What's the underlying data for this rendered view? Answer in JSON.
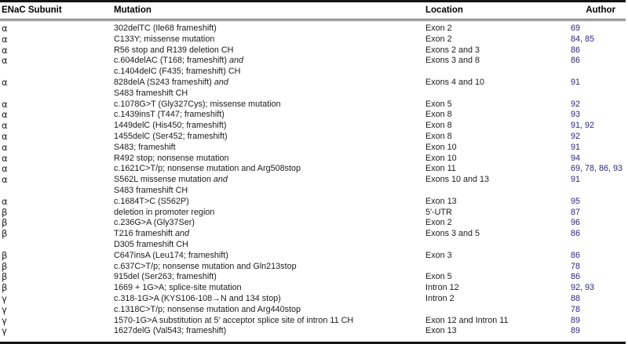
{
  "colors": {
    "author_ref": "#28287d",
    "rule": "#141414",
    "text": "#1b1b1b"
  },
  "table": {
    "columns": [
      "ENaC Subunit",
      "Mutation",
      "Location",
      "Author"
    ],
    "rows": [
      {
        "subunit": "α",
        "mutation_lines": [
          "302delTC (Ile68 frameshift)"
        ],
        "location": "Exon 2",
        "author": "69"
      },
      {
        "subunit": "α",
        "mutation_lines": [
          "C133Y; missense mutation"
        ],
        "location": "Exon 2",
        "author": "84, 85"
      },
      {
        "subunit": "α",
        "mutation_lines": [
          "R56 stop and R139 deletion CH"
        ],
        "location": "Exons 2 and 3",
        "author": "86"
      },
      {
        "subunit": "α",
        "mutation_lines": [
          "c.604delAC (T168; frameshift) and",
          "c.1404delC (F435; frameshift) CH"
        ],
        "location": "Exons 3 and 8",
        "author": "86"
      },
      {
        "subunit": "α",
        "mutation_lines": [
          "828delA (S243 frameshift) and",
          "S483 frameshift CH"
        ],
        "location": "Exons 4 and 10",
        "author": "91"
      },
      {
        "subunit": "α",
        "mutation_lines": [
          "c.1078G>T (Gly327Cys); missense mutation"
        ],
        "location": "Exon 5",
        "author": "92"
      },
      {
        "subunit": "α",
        "mutation_lines": [
          "c.1439insT (T447; frameshift)"
        ],
        "location": "Exon 8",
        "author": "93"
      },
      {
        "subunit": "α",
        "mutation_lines": [
          "1449delC (His450; frameshift)"
        ],
        "location": "Exon 8",
        "author": "91, 92"
      },
      {
        "subunit": "α",
        "mutation_lines": [
          "1455delC (Ser452; frameshift)"
        ],
        "location": "Exon 8",
        "author": "92"
      },
      {
        "subunit": "α",
        "mutation_lines": [
          "S483; frameshift"
        ],
        "location": "Exon 10",
        "author": "91"
      },
      {
        "subunit": "α",
        "mutation_lines": [
          "R492 stop; nonsense mutation"
        ],
        "location": "Exon 10",
        "author": "94"
      },
      {
        "subunit": "α",
        "mutation_lines": [
          "c.1621C>T/p; nonsense mutation and Arg508stop"
        ],
        "location": "Exon 11",
        "author": "69, 78, 86, 93"
      },
      {
        "subunit": "α",
        "mutation_lines": [
          "S562L missense mutation and",
          "S483 frameshift CH"
        ],
        "location": "Exons 10 and 13",
        "author": "91"
      },
      {
        "subunit": "α",
        "mutation_lines": [
          "c.1684T>C (S562P)"
        ],
        "location": "Exon 13",
        "author": "95"
      },
      {
        "subunit": "β",
        "mutation_lines": [
          "deletion in promoter region"
        ],
        "location": "5′-UTR",
        "author": "87"
      },
      {
        "subunit": "β",
        "mutation_lines": [
          "c.236G>A (Gly37Ser)"
        ],
        "location": "Exon 2",
        "author": "96"
      },
      {
        "subunit": "β",
        "mutation_lines": [
          "T216 frameshift and",
          "D305 frameshift CH"
        ],
        "location": "Exons 3 and 5",
        "author": "86"
      },
      {
        "subunit": "β",
        "mutation_lines": [
          "C647insA (Leu174; frameshift)"
        ],
        "location": "Exon 3",
        "author": "86"
      },
      {
        "subunit": "β",
        "mutation_lines": [
          "c.637C>T/p; nonsense mutation and Gln213stop"
        ],
        "location": "",
        "author": "78"
      },
      {
        "subunit": "β",
        "mutation_lines": [
          "915del (Ser263; frameshift)"
        ],
        "location": "Exon 5",
        "author": "86"
      },
      {
        "subunit": "β",
        "mutation_lines": [
          "1669 + 1G>A; splice-site mutation"
        ],
        "location": "Intron 12",
        "author": "92, 93"
      },
      {
        "subunit": "γ",
        "mutation_lines": [
          "c.318-1G>A (KYS106-108→N and 134 stop)"
        ],
        "location": "Intron 2",
        "author": "88"
      },
      {
        "subunit": "γ",
        "mutation_lines": [
          "c.1318C>T/p; nonsense mutation and Arg440stop"
        ],
        "location": "",
        "author": "78"
      },
      {
        "subunit": "γ",
        "mutation_lines": [
          "1570-1G>A substitution at 5′ acceptor splice site of intron 11 CH"
        ],
        "location": "Exon 12 and Intron 11",
        "author": "89"
      },
      {
        "subunit": "γ",
        "mutation_lines": [
          "1627delG (Val543; frameshift)"
        ],
        "location": "Exon 13",
        "author": "89"
      }
    ]
  }
}
